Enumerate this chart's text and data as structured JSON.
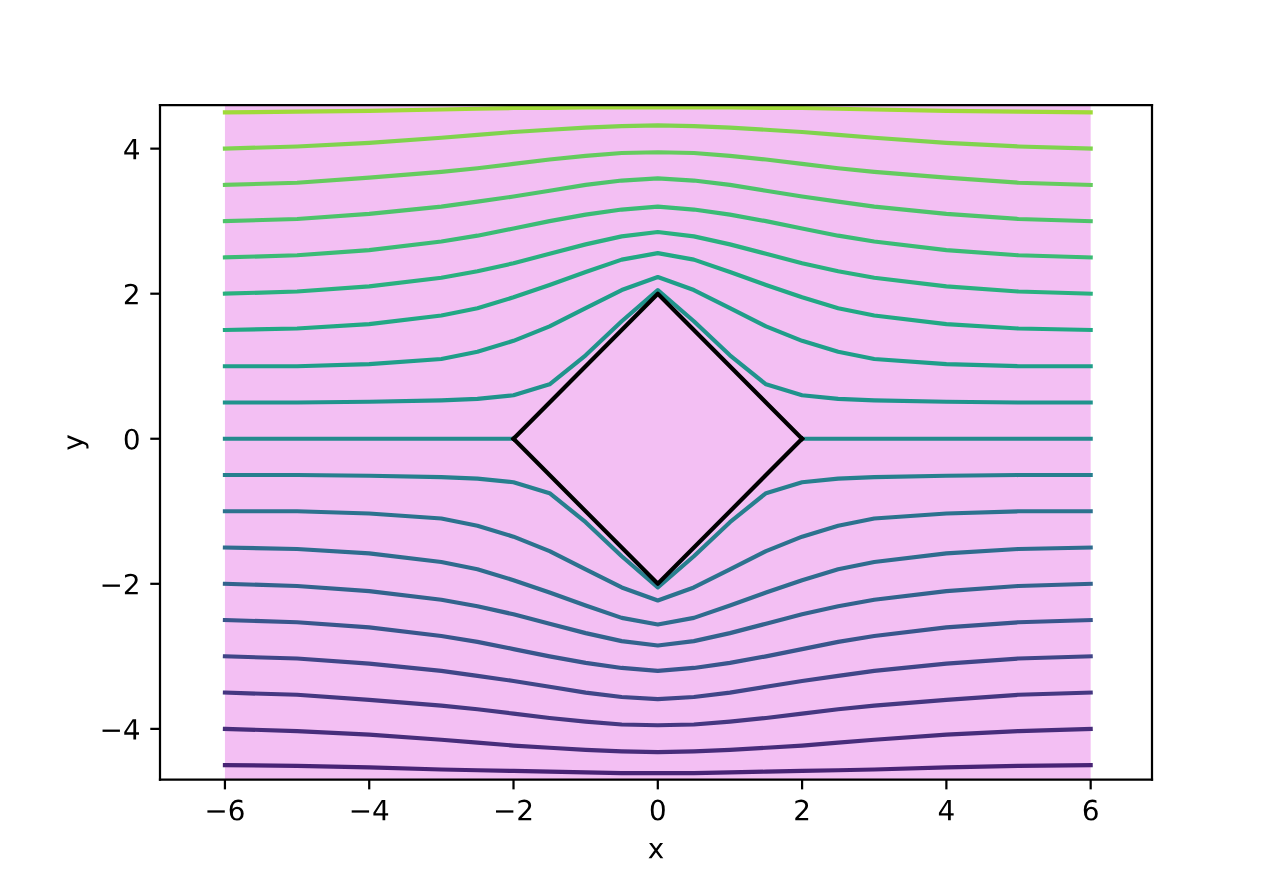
{
  "chart_data": {
    "type": "line",
    "xlabel": "x",
    "ylabel": "y",
    "xlim": [
      -6.9,
      6.85
    ],
    "ylim": [
      -4.7,
      4.6
    ],
    "xticks": [
      -6,
      -4,
      -2,
      0,
      2,
      4,
      6
    ],
    "yticks": [
      -4,
      -2,
      0,
      2,
      4
    ],
    "grid": false,
    "legend": false,
    "marker": "none",
    "line_style": "solid",
    "bands": [
      {
        "axis": "x",
        "from": -6,
        "to": 6,
        "color": "#f3bff3"
      }
    ],
    "series": [
      {
        "color": "#482475",
        "x": [
          -6,
          -5,
          -4,
          -3,
          -2.5,
          -2,
          -1.5,
          -1,
          -0.5,
          0,
          0.5,
          1,
          1.5,
          2,
          2.5,
          3,
          4,
          5,
          6
        ],
        "values": [
          -4.5,
          -4.51,
          -4.53,
          -4.56,
          -4.57,
          -4.58,
          -4.59,
          -4.6,
          -4.61,
          -4.61,
          -4.61,
          -4.6,
          -4.59,
          -4.58,
          -4.57,
          -4.56,
          -4.53,
          -4.51,
          -4.5
        ]
      },
      {
        "color": "#472d7b",
        "x": [
          -6,
          -5,
          -4,
          -3,
          -2.5,
          -2,
          -1.5,
          -1,
          -0.5,
          0,
          0.5,
          1,
          1.5,
          2,
          2.5,
          3,
          4,
          5,
          6
        ],
        "values": [
          -4.0,
          -4.03,
          -4.08,
          -4.15,
          -4.19,
          -4.23,
          -4.26,
          -4.29,
          -4.31,
          -4.32,
          -4.31,
          -4.29,
          -4.26,
          -4.23,
          -4.19,
          -4.15,
          -4.08,
          -4.03,
          -4.0
        ]
      },
      {
        "color": "#453781",
        "x": [
          -6,
          -5,
          -4,
          -3,
          -2.5,
          -2,
          -1.5,
          -1,
          -0.5,
          0,
          0.5,
          1,
          1.5,
          2,
          2.5,
          3,
          4,
          5,
          6
        ],
        "values": [
          -3.5,
          -3.53,
          -3.6,
          -3.68,
          -3.73,
          -3.79,
          -3.85,
          -3.9,
          -3.94,
          -3.95,
          -3.94,
          -3.9,
          -3.85,
          -3.79,
          -3.73,
          -3.68,
          -3.6,
          -3.53,
          -3.5
        ]
      },
      {
        "color": "#404688",
        "x": [
          -6,
          -5,
          -4,
          -3,
          -2.5,
          -2,
          -1.5,
          -1,
          -0.5,
          0,
          0.5,
          1,
          1.5,
          2,
          2.5,
          3,
          4,
          5,
          6
        ],
        "values": [
          -3.0,
          -3.03,
          -3.1,
          -3.2,
          -3.27,
          -3.34,
          -3.42,
          -3.5,
          -3.56,
          -3.59,
          -3.56,
          -3.5,
          -3.42,
          -3.34,
          -3.27,
          -3.2,
          -3.1,
          -3.03,
          -3.0
        ]
      },
      {
        "color": "#39568c",
        "x": [
          -6,
          -5,
          -4,
          -3,
          -2.5,
          -2,
          -1.5,
          -1,
          -0.5,
          0,
          0.5,
          1,
          1.5,
          2,
          2.5,
          3,
          4,
          5,
          6
        ],
        "values": [
          -2.5,
          -2.53,
          -2.6,
          -2.72,
          -2.8,
          -2.9,
          -3.0,
          -3.09,
          -3.16,
          -3.2,
          -3.16,
          -3.09,
          -3.0,
          -2.9,
          -2.8,
          -2.72,
          -2.6,
          -2.53,
          -2.5
        ]
      },
      {
        "color": "#33638d",
        "x": [
          -6,
          -5,
          -4,
          -3,
          -2.5,
          -2,
          -1.5,
          -1,
          -0.5,
          0,
          0.5,
          1,
          1.5,
          2,
          2.5,
          3,
          4,
          5,
          6
        ],
        "values": [
          -2.0,
          -2.03,
          -2.1,
          -2.22,
          -2.31,
          -2.42,
          -2.55,
          -2.68,
          -2.79,
          -2.85,
          -2.79,
          -2.68,
          -2.55,
          -2.42,
          -2.31,
          -2.22,
          -2.1,
          -2.03,
          -2.0
        ]
      },
      {
        "color": "#2f6c8e",
        "x": [
          -6,
          -5,
          -4,
          -3,
          -2.5,
          -2,
          -1.5,
          -1,
          -0.5,
          0,
          0.5,
          1,
          1.5,
          2,
          2.5,
          3,
          4,
          5,
          6
        ],
        "values": [
          -1.5,
          -1.52,
          -1.58,
          -1.7,
          -1.8,
          -1.95,
          -2.12,
          -2.3,
          -2.47,
          -2.56,
          -2.47,
          -2.3,
          -2.12,
          -1.95,
          -1.8,
          -1.7,
          -1.58,
          -1.52,
          -1.5
        ]
      },
      {
        "color": "#2c728e",
        "x": [
          -6,
          -5,
          -4,
          -3,
          -2.5,
          -2,
          -1.5,
          -1,
          -0.5,
          0,
          0.5,
          1,
          1.5,
          2,
          2.5,
          3,
          4,
          5,
          6
        ],
        "values": [
          -1.0,
          -1.0,
          -1.03,
          -1.1,
          -1.2,
          -1.35,
          -1.55,
          -1.8,
          -2.05,
          -2.23,
          -2.05,
          -1.8,
          -1.55,
          -1.35,
          -1.2,
          -1.1,
          -1.03,
          -1.0,
          -1.0
        ]
      },
      {
        "color": "#277f8e",
        "x": [
          -6,
          -5,
          -4,
          -3,
          -2.5,
          -2,
          -1.5,
          -1,
          -0.5,
          0,
          0.5,
          1,
          1.5,
          2,
          2.5,
          3,
          4,
          5,
          6
        ],
        "values": [
          -0.5,
          -0.5,
          -0.51,
          -0.53,
          -0.55,
          -0.6,
          -0.75,
          -1.15,
          -1.62,
          -2.05,
          -1.62,
          -1.15,
          -0.75,
          -0.6,
          -0.55,
          -0.53,
          -0.51,
          -0.5,
          -0.5
        ]
      },
      {
        "color": "#238a8d",
        "x": [
          -6,
          -2,
          0,
          2,
          6
        ],
        "values": [
          0,
          0,
          null,
          0,
          0
        ]
      },
      {
        "color": "#20938c",
        "x": [
          -6,
          -5,
          -4,
          -3,
          -2.5,
          -2,
          -1.5,
          -1,
          -0.5,
          0,
          0.5,
          1,
          1.5,
          2,
          2.5,
          3,
          4,
          5,
          6
        ],
        "values": [
          0.5,
          0.5,
          0.51,
          0.53,
          0.55,
          0.6,
          0.75,
          1.15,
          1.62,
          2.05,
          1.62,
          1.15,
          0.75,
          0.6,
          0.55,
          0.53,
          0.51,
          0.5,
          0.5
        ]
      },
      {
        "color": "#1f9e89",
        "x": [
          -6,
          -5,
          -4,
          -3,
          -2.5,
          -2,
          -1.5,
          -1,
          -0.5,
          0,
          0.5,
          1,
          1.5,
          2,
          2.5,
          3,
          4,
          5,
          6
        ],
        "values": [
          1.0,
          1.0,
          1.03,
          1.1,
          1.2,
          1.35,
          1.55,
          1.8,
          2.05,
          2.23,
          2.05,
          1.8,
          1.55,
          1.35,
          1.2,
          1.1,
          1.03,
          1.0,
          1.0
        ]
      },
      {
        "color": "#22a884",
        "x": [
          -6,
          -5,
          -4,
          -3,
          -2.5,
          -2,
          -1.5,
          -1,
          -0.5,
          0,
          0.5,
          1,
          1.5,
          2,
          2.5,
          3,
          4,
          5,
          6
        ],
        "values": [
          1.5,
          1.52,
          1.58,
          1.7,
          1.8,
          1.95,
          2.12,
          2.3,
          2.47,
          2.56,
          2.47,
          2.3,
          2.12,
          1.95,
          1.8,
          1.7,
          1.58,
          1.52,
          1.5
        ]
      },
      {
        "color": "#2ab07f",
        "x": [
          -6,
          -5,
          -4,
          -3,
          -2.5,
          -2,
          -1.5,
          -1,
          -0.5,
          0,
          0.5,
          1,
          1.5,
          2,
          2.5,
          3,
          4,
          5,
          6
        ],
        "values": [
          2.0,
          2.03,
          2.1,
          2.22,
          2.31,
          2.42,
          2.55,
          2.68,
          2.79,
          2.85,
          2.79,
          2.68,
          2.55,
          2.42,
          2.31,
          2.22,
          2.1,
          2.03,
          2.0
        ]
      },
      {
        "color": "#3bbb75",
        "x": [
          -6,
          -5,
          -4,
          -3,
          -2.5,
          -2,
          -1.5,
          -1,
          -0.5,
          0,
          0.5,
          1,
          1.5,
          2,
          2.5,
          3,
          4,
          5,
          6
        ],
        "values": [
          2.5,
          2.53,
          2.6,
          2.72,
          2.8,
          2.9,
          3.0,
          3.09,
          3.16,
          3.2,
          3.16,
          3.09,
          3.0,
          2.9,
          2.8,
          2.72,
          2.6,
          2.53,
          2.5
        ]
      },
      {
        "color": "#4ec36b",
        "x": [
          -6,
          -5,
          -4,
          -3,
          -2.5,
          -2,
          -1.5,
          -1,
          -0.5,
          0,
          0.5,
          1,
          1.5,
          2,
          2.5,
          3,
          4,
          5,
          6
        ],
        "values": [
          3.0,
          3.03,
          3.1,
          3.2,
          3.27,
          3.34,
          3.42,
          3.5,
          3.56,
          3.59,
          3.56,
          3.5,
          3.42,
          3.34,
          3.27,
          3.2,
          3.1,
          3.03,
          3.0
        ]
      },
      {
        "color": "#65cb5e",
        "x": [
          -6,
          -5,
          -4,
          -3,
          -2.5,
          -2,
          -1.5,
          -1,
          -0.5,
          0,
          0.5,
          1,
          1.5,
          2,
          2.5,
          3,
          4,
          5,
          6
        ],
        "values": [
          3.5,
          3.53,
          3.6,
          3.68,
          3.73,
          3.79,
          3.85,
          3.9,
          3.94,
          3.95,
          3.94,
          3.9,
          3.85,
          3.79,
          3.73,
          3.68,
          3.6,
          3.53,
          3.5
        ]
      },
      {
        "color": "#7fd34e",
        "x": [
          -6,
          -5,
          -4,
          -3,
          -2.5,
          -2,
          -1.5,
          -1,
          -0.5,
          0,
          0.5,
          1,
          1.5,
          2,
          2.5,
          3,
          4,
          5,
          6
        ],
        "values": [
          4.0,
          4.03,
          4.08,
          4.15,
          4.19,
          4.23,
          4.26,
          4.29,
          4.31,
          4.32,
          4.31,
          4.29,
          4.26,
          4.23,
          4.19,
          4.15,
          4.08,
          4.03,
          4.0
        ]
      },
      {
        "color": "#a0da39",
        "x": [
          -6,
          -5,
          -4,
          -3,
          -2.5,
          -2,
          -1.5,
          -1,
          -0.5,
          0,
          0.5,
          1,
          1.5,
          2,
          2.5,
          3,
          4,
          5,
          6
        ],
        "values": [
          4.5,
          4.51,
          4.52,
          4.54,
          4.55,
          4.56,
          4.56,
          4.57,
          4.57,
          4.57,
          4.57,
          4.57,
          4.56,
          4.56,
          4.55,
          4.54,
          4.52,
          4.51,
          4.5
        ]
      },
      {
        "color": "#000000",
        "x": [
          -2,
          0,
          2
        ],
        "values": [
          0,
          2,
          0
        ]
      },
      {
        "color": "#000000",
        "x": [
          -2,
          0,
          2
        ],
        "values": [
          0,
          -2,
          0
        ]
      }
    ]
  }
}
